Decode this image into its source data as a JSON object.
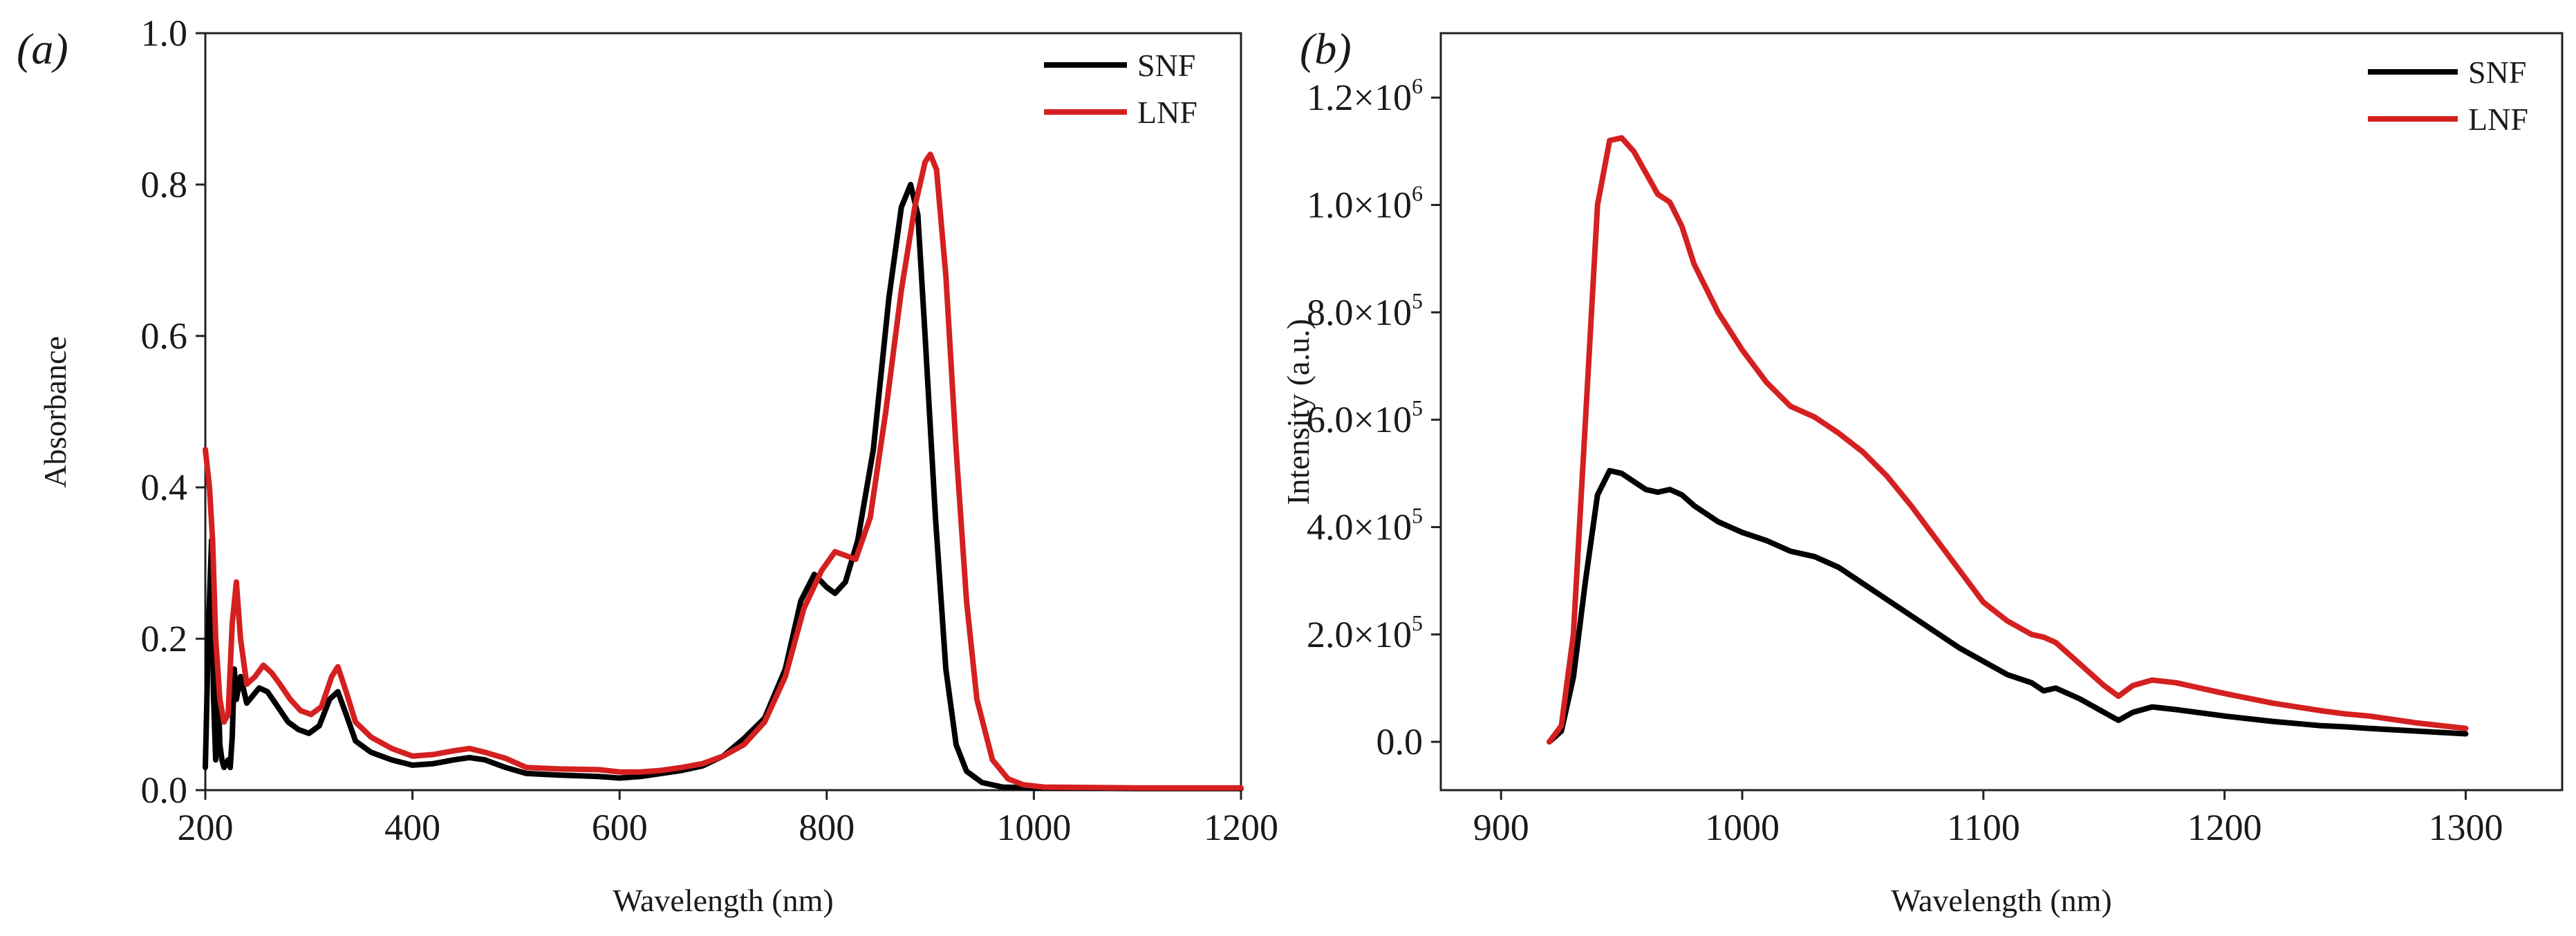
{
  "chart_data": [
    {
      "panel_label": "(a)",
      "type": "line",
      "xlabel": "Wavelength (nm)",
      "ylabel": "Absorbance",
      "xlim": [
        200,
        1200
      ],
      "ylim": [
        0.0,
        1.0
      ],
      "xticks": [
        200,
        400,
        600,
        800,
        1000,
        1200
      ],
      "xtick_labels": [
        "200",
        "400",
        "600",
        "800",
        "1000",
        "1200"
      ],
      "yticks": [
        0.0,
        0.2,
        0.4,
        0.6,
        0.8,
        1.0
      ],
      "ytick_labels": [
        "0.0",
        "0.2",
        "0.4",
        "0.6",
        "0.8",
        "1.0"
      ],
      "grid": false,
      "legend_position": "top-right",
      "series": [
        {
          "name": "SNF",
          "color": "#000000",
          "points": [
            [
              200,
              0.03
            ],
            [
              203,
              0.21
            ],
            [
              206,
              0.33
            ],
            [
              208,
              0.12
            ],
            [
              210,
              0.04
            ],
            [
              212,
              0.16
            ],
            [
              214,
              0.06
            ],
            [
              216,
              0.04
            ],
            [
              218,
              0.03
            ],
            [
              220,
              0.035
            ],
            [
              222,
              0.04
            ],
            [
              224,
              0.03
            ],
            [
              226,
              0.07
            ],
            [
              228,
              0.16
            ],
            [
              230,
              0.12
            ],
            [
              234,
              0.15
            ],
            [
              240,
              0.115
            ],
            [
              246,
              0.125
            ],
            [
              252,
              0.135
            ],
            [
              260,
              0.13
            ],
            [
              270,
              0.11
            ],
            [
              280,
              0.09
            ],
            [
              290,
              0.08
            ],
            [
              300,
              0.075
            ],
            [
              310,
              0.085
            ],
            [
              320,
              0.12
            ],
            [
              328,
              0.13
            ],
            [
              336,
              0.1
            ],
            [
              345,
              0.065
            ],
            [
              360,
              0.05
            ],
            [
              380,
              0.04
            ],
            [
              400,
              0.033
            ],
            [
              420,
              0.035
            ],
            [
              440,
              0.04
            ],
            [
              455,
              0.043
            ],
            [
              470,
              0.04
            ],
            [
              490,
              0.03
            ],
            [
              510,
              0.022
            ],
            [
              540,
              0.02
            ],
            [
              580,
              0.018
            ],
            [
              600,
              0.016
            ],
            [
              620,
              0.018
            ],
            [
              640,
              0.022
            ],
            [
              660,
              0.026
            ],
            [
              680,
              0.032
            ],
            [
              700,
              0.045
            ],
            [
              720,
              0.068
            ],
            [
              740,
              0.095
            ],
            [
              760,
              0.16
            ],
            [
              775,
              0.25
            ],
            [
              788,
              0.285
            ],
            [
              800,
              0.268
            ],
            [
              808,
              0.26
            ],
            [
              818,
              0.275
            ],
            [
              830,
              0.33
            ],
            [
              845,
              0.45
            ],
            [
              860,
              0.65
            ],
            [
              872,
              0.77
            ],
            [
              881,
              0.8
            ],
            [
              888,
              0.76
            ],
            [
              895,
              0.6
            ],
            [
              905,
              0.36
            ],
            [
              915,
              0.16
            ],
            [
              925,
              0.06
            ],
            [
              935,
              0.025
            ],
            [
              950,
              0.01
            ],
            [
              970,
              0.004
            ],
            [
              1000,
              0.003
            ],
            [
              1100,
              0.002
            ],
            [
              1200,
              0.002
            ]
          ]
        },
        {
          "name": "LNF",
          "color": "#d42020",
          "points": [
            [
              200,
              0.45
            ],
            [
              204,
              0.4
            ],
            [
              207,
              0.33
            ],
            [
              210,
              0.2
            ],
            [
              214,
              0.12
            ],
            [
              218,
              0.09
            ],
            [
              222,
              0.1
            ],
            [
              226,
              0.22
            ],
            [
              230,
              0.275
            ],
            [
              234,
              0.2
            ],
            [
              240,
              0.14
            ],
            [
              248,
              0.15
            ],
            [
              256,
              0.165
            ],
            [
              264,
              0.155
            ],
            [
              272,
              0.14
            ],
            [
              282,
              0.12
            ],
            [
              292,
              0.105
            ],
            [
              302,
              0.1
            ],
            [
              312,
              0.11
            ],
            [
              322,
              0.15
            ],
            [
              328,
              0.163
            ],
            [
              336,
              0.13
            ],
            [
              345,
              0.09
            ],
            [
              360,
              0.07
            ],
            [
              380,
              0.055
            ],
            [
              400,
              0.045
            ],
            [
              420,
              0.047
            ],
            [
              440,
              0.052
            ],
            [
              455,
              0.055
            ],
            [
              470,
              0.05
            ],
            [
              490,
              0.042
            ],
            [
              510,
              0.03
            ],
            [
              540,
              0.028
            ],
            [
              580,
              0.027
            ],
            [
              600,
              0.024
            ],
            [
              620,
              0.024
            ],
            [
              640,
              0.026
            ],
            [
              660,
              0.03
            ],
            [
              680,
              0.035
            ],
            [
              700,
              0.045
            ],
            [
              720,
              0.06
            ],
            [
              740,
              0.09
            ],
            [
              760,
              0.15
            ],
            [
              778,
              0.24
            ],
            [
              795,
              0.29
            ],
            [
              808,
              0.315
            ],
            [
              818,
              0.31
            ],
            [
              828,
              0.305
            ],
            [
              842,
              0.36
            ],
            [
              857,
              0.5
            ],
            [
              872,
              0.66
            ],
            [
              885,
              0.77
            ],
            [
              895,
              0.83
            ],
            [
              900,
              0.84
            ],
            [
              906,
              0.82
            ],
            [
              915,
              0.68
            ],
            [
              925,
              0.45
            ],
            [
              935,
              0.25
            ],
            [
              945,
              0.12
            ],
            [
              960,
              0.04
            ],
            [
              975,
              0.015
            ],
            [
              990,
              0.007
            ],
            [
              1010,
              0.004
            ],
            [
              1100,
              0.003
            ],
            [
              1200,
              0.003
            ]
          ]
        }
      ]
    },
    {
      "panel_label": "(b)",
      "type": "line",
      "xlabel": "Wavelength (nm)",
      "ylabel": "Intensity (a.u.)",
      "xlim": [
        875,
        1340
      ],
      "ylim": [
        -90000,
        1320000
      ],
      "xticks": [
        900,
        1000,
        1100,
        1200,
        1300
      ],
      "xtick_labels": [
        "900",
        "1000",
        "1100",
        "1200",
        "1300"
      ],
      "yticks": [
        0,
        200000,
        400000,
        600000,
        800000,
        1000000,
        1200000
      ],
      "ytick_labels": [
        {
          "base": "0.0",
          "exp": ""
        },
        {
          "base": "2.0×10",
          "exp": "5"
        },
        {
          "base": "4.0×10",
          "exp": "5"
        },
        {
          "base": "6.0×10",
          "exp": "5"
        },
        {
          "base": "8.0×10",
          "exp": "5"
        },
        {
          "base": "1.0×10",
          "exp": "6"
        },
        {
          "base": "1.2×10",
          "exp": "6"
        }
      ],
      "grid": false,
      "legend_position": "top-right",
      "series": [
        {
          "name": "SNF",
          "color": "#000000",
          "points": [
            [
              920,
              0
            ],
            [
              925,
              20000
            ],
            [
              930,
              120000
            ],
            [
              935,
              300000
            ],
            [
              940,
              460000
            ],
            [
              945,
              505000
            ],
            [
              950,
              500000
            ],
            [
              955,
              485000
            ],
            [
              960,
              470000
            ],
            [
              965,
              465000
            ],
            [
              970,
              470000
            ],
            [
              975,
              460000
            ],
            [
              980,
              440000
            ],
            [
              990,
              410000
            ],
            [
              1000,
              390000
            ],
            [
              1010,
              375000
            ],
            [
              1020,
              355000
            ],
            [
              1030,
              345000
            ],
            [
              1040,
              325000
            ],
            [
              1050,
              295000
            ],
            [
              1060,
              265000
            ],
            [
              1070,
              235000
            ],
            [
              1080,
              205000
            ],
            [
              1090,
              175000
            ],
            [
              1100,
              150000
            ],
            [
              1110,
              125000
            ],
            [
              1120,
              110000
            ],
            [
              1125,
              95000
            ],
            [
              1130,
              100000
            ],
            [
              1140,
              80000
            ],
            [
              1150,
              55000
            ],
            [
              1156,
              40000
            ],
            [
              1162,
              55000
            ],
            [
              1170,
              65000
            ],
            [
              1180,
              60000
            ],
            [
              1200,
              48000
            ],
            [
              1220,
              38000
            ],
            [
              1240,
              30000
            ],
            [
              1250,
              28000
            ],
            [
              1260,
              25000
            ],
            [
              1280,
              20000
            ],
            [
              1300,
              15000
            ]
          ]
        },
        {
          "name": "LNF",
          "color": "#d42020",
          "points": [
            [
              920,
              0
            ],
            [
              925,
              30000
            ],
            [
              930,
              200000
            ],
            [
              935,
              600000
            ],
            [
              940,
              1000000
            ],
            [
              945,
              1120000
            ],
            [
              950,
              1125000
            ],
            [
              955,
              1100000
            ],
            [
              960,
              1060000
            ],
            [
              965,
              1020000
            ],
            [
              970,
              1005000
            ],
            [
              975,
              960000
            ],
            [
              980,
              890000
            ],
            [
              990,
              800000
            ],
            [
              1000,
              730000
            ],
            [
              1010,
              670000
            ],
            [
              1020,
              625000
            ],
            [
              1025,
              615000
            ],
            [
              1030,
              605000
            ],
            [
              1040,
              575000
            ],
            [
              1050,
              540000
            ],
            [
              1060,
              495000
            ],
            [
              1070,
              440000
            ],
            [
              1080,
              380000
            ],
            [
              1090,
              320000
            ],
            [
              1100,
              260000
            ],
            [
              1110,
              225000
            ],
            [
              1120,
              200000
            ],
            [
              1125,
              195000
            ],
            [
              1130,
              185000
            ],
            [
              1140,
              145000
            ],
            [
              1150,
              105000
            ],
            [
              1156,
              85000
            ],
            [
              1162,
              105000
            ],
            [
              1170,
              115000
            ],
            [
              1180,
              110000
            ],
            [
              1200,
              90000
            ],
            [
              1220,
              72000
            ],
            [
              1240,
              58000
            ],
            [
              1250,
              52000
            ],
            [
              1260,
              48000
            ],
            [
              1280,
              35000
            ],
            [
              1300,
              25000
            ]
          ]
        }
      ]
    }
  ]
}
